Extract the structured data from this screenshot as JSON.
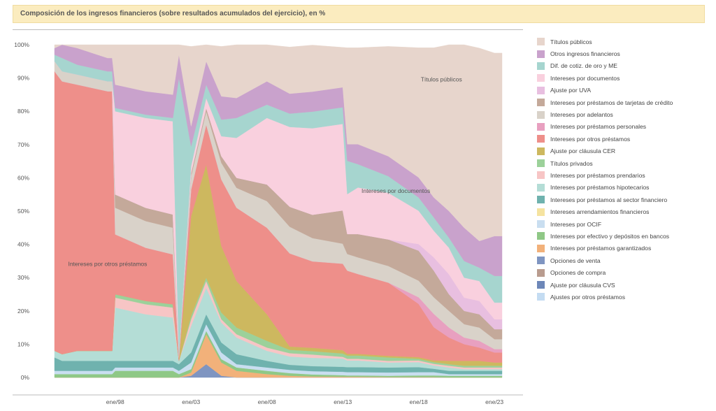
{
  "header": {
    "title": "Composición de los ingresos financieros (sobre resultados acumulados del ejercicio), en %"
  },
  "chart_data": {
    "type": "area",
    "stacked": true,
    "normalized": true,
    "title": "Composición de los ingresos financieros (sobre resultados acumulados del ejercicio), en %",
    "ylim": [
      0,
      100
    ],
    "y_ticks": [
      "0%",
      "10%",
      "20%",
      "30%",
      "40%",
      "50%",
      "60%",
      "70%",
      "80%",
      "90%",
      "100%"
    ],
    "x_range": [
      1994.0,
      2023.5
    ],
    "x_ticks": [
      {
        "label": "ene/98",
        "x": 1998
      },
      {
        "label": "ene/03",
        "x": 2003
      },
      {
        "label": "ene/08",
        "x": 2008
      },
      {
        "label": "ene/13",
        "x": 2013
      },
      {
        "label": "ene/18",
        "x": 2018
      },
      {
        "label": "ene/23",
        "x": 2023
      }
    ],
    "legend_position": "right",
    "grid": false,
    "annotations": [
      {
        "text": "Títulos públicos",
        "x": 2019.5,
        "y": 89
      },
      {
        "text": "Intereses por documentos",
        "x": 2016.5,
        "y": 55.5
      },
      {
        "text": "Intereses por otros préstamos",
        "x": 1997.5,
        "y": 33.5
      }
    ],
    "x": [
      1994.0,
      1994.5,
      1995.5,
      1997.5,
      1997.8,
      1998.0,
      2000.0,
      2001.8,
      2002.2,
      2003.0,
      2004.0,
      2005.0,
      2006.0,
      2008.0,
      2009.5,
      2011.0,
      2013.0,
      2013.3,
      2014.0,
      2016.0,
      2018.0,
      2019.0,
      2020.0,
      2021.0,
      2022.0,
      2023.0,
      2023.5
    ],
    "series": [
      {
        "name": "Opciones de venta",
        "color": "#7f95c1",
        "values": [
          0,
          0,
          0,
          0,
          0,
          0,
          0,
          0,
          0,
          0.5,
          4,
          0.5,
          0,
          0,
          0,
          0,
          0,
          0,
          0,
          0,
          0,
          0,
          0,
          0,
          0,
          0,
          0
        ]
      },
      {
        "name": "Intereses por préstamos garantizados",
        "color": "#f2b17a",
        "values": [
          0,
          0,
          0,
          0,
          0,
          0,
          0,
          0,
          0,
          1,
          9,
          4,
          2,
          1,
          0.5,
          0.3,
          0.2,
          0.2,
          0.2,
          0.1,
          0.1,
          0.1,
          0,
          0,
          0,
          0,
          0
        ]
      },
      {
        "name": "Intereses por efectivo y depósitos en bancos",
        "color": "#8fc886",
        "values": [
          1,
          1,
          1,
          1,
          1,
          2,
          2,
          2,
          1,
          1,
          1,
          1,
          1,
          1,
          0.8,
          0.6,
          0.5,
          0.4,
          0.4,
          0.4,
          0.5,
          0.5,
          0.5,
          0.5,
          0.5,
          0.5,
          0.5
        ]
      },
      {
        "name": "Intereses por OCIF",
        "color": "#c9def0",
        "values": [
          1,
          1,
          1,
          1,
          1,
          1,
          1,
          1,
          1,
          2,
          2,
          2,
          1,
          1,
          1,
          1,
          1,
          1,
          1,
          1,
          1,
          1,
          0.5,
          0.5,
          0.5,
          0.5,
          0.5
        ]
      },
      {
        "name": "Intereses por préstamos al sector financiero",
        "color": "#6fb2ae",
        "values": [
          4,
          3,
          3,
          3,
          3,
          2,
          2,
          2,
          2,
          3,
          3,
          3,
          3,
          2,
          1.5,
          1.5,
          1.5,
          1.5,
          1.5,
          1.5,
          1.5,
          1,
          1,
          1,
          1,
          1,
          1
        ]
      },
      {
        "name": "Intereses por préstamos hipotecarios",
        "color": "#b4ddd6",
        "values": [
          2,
          2,
          3,
          3,
          3,
          16,
          14,
          13,
          1,
          8,
          8,
          6,
          5,
          3,
          2.5,
          2.5,
          2.5,
          2,
          2,
          1.5,
          1.5,
          1,
          1,
          0.5,
          0.5,
          0.5,
          0.5
        ]
      },
      {
        "name": "Intereses por préstamos prendarios",
        "color": "#f7c5c5",
        "values": [
          0,
          0,
          0,
          0,
          0,
          3,
          3,
          3,
          0,
          2,
          2,
          1,
          1,
          1,
          1,
          1,
          0.5,
          0.5,
          0.5,
          0.5,
          0.5,
          0.5,
          0.5,
          0.5,
          0.5,
          0.5,
          0.5
        ]
      },
      {
        "name": "Títulos privados",
        "color": "#9cd19a",
        "values": [
          0,
          0,
          0,
          0,
          0,
          1,
          1,
          1,
          0,
          1,
          1,
          2,
          2,
          2,
          1,
          1,
          1,
          1,
          1,
          1,
          0.5,
          0.5,
          0.5,
          0.5,
          0.5,
          0.5,
          0.5
        ]
      },
      {
        "name": "Ajuste por cláusula CER",
        "color": "#cdb85f",
        "values": [
          0,
          0,
          0,
          0,
          0,
          0,
          0,
          0,
          0,
          30,
          34,
          20,
          14,
          8,
          1,
          1,
          1,
          0.5,
          0.5,
          0.5,
          0.5,
          0.5,
          1,
          1.5,
          1.5,
          1,
          1
        ]
      },
      {
        "name": "Intereses por otros préstamos",
        "color": "#ee8f8a",
        "values": [
          84,
          82,
          80,
          78,
          78,
          18,
          16,
          15,
          1,
          8,
          12,
          20,
          22,
          26,
          28,
          26,
          26,
          25,
          24,
          22,
          16,
          10,
          7,
          5,
          4,
          3,
          3
        ]
      },
      {
        "name": "Intereses por préstamos personales",
        "color": "#e8a0c0",
        "values": [
          0,
          0,
          0,
          0,
          0,
          0,
          0,
          0,
          0,
          0,
          0,
          0,
          0,
          0,
          0,
          0,
          0,
          0,
          0,
          0,
          2,
          4,
          3,
          2,
          2,
          1,
          1
        ]
      },
      {
        "name": "Intereses por adelantos",
        "color": "#d9d2c9",
        "values": [
          3,
          3,
          3,
          3,
          3,
          8,
          8,
          8,
          1,
          4,
          4,
          5,
          6,
          8,
          8,
          7,
          6,
          5,
          5,
          5,
          5,
          5,
          5,
          4,
          4,
          3,
          3
        ]
      },
      {
        "name": "Intereses por préstamos de tarjetas de crédito",
        "color": "#c4a99a",
        "values": [
          0,
          0,
          0,
          0,
          0,
          4,
          4,
          4,
          0,
          1,
          1,
          2,
          3,
          5,
          6,
          7,
          10,
          6,
          7,
          8,
          9,
          8,
          5,
          4,
          4,
          3,
          3
        ]
      },
      {
        "name": "Ajuste por UVA",
        "color": "#e8bfe0",
        "values": [
          0,
          0,
          0,
          0,
          0,
          0,
          0,
          0,
          0,
          0,
          0,
          0,
          0,
          0,
          0,
          0,
          0,
          0,
          0,
          0,
          2,
          4,
          6,
          4,
          4,
          3,
          3
        ]
      },
      {
        "name": "Intereses por documentos",
        "color": "#f9d0de",
        "values": [
          0,
          0,
          0,
          0,
          0,
          25,
          27,
          28,
          0,
          2,
          3,
          6,
          12,
          20,
          24,
          26,
          26,
          12,
          14,
          14,
          10,
          8,
          8,
          6,
          6,
          5,
          5
        ]
      },
      {
        "name": "Dif. de cotiz. de oro y ME",
        "color": "#a6d5cf",
        "values": [
          2,
          4,
          3,
          3,
          3,
          1,
          1,
          1,
          83,
          6,
          4,
          5,
          6,
          4,
          4,
          5,
          5,
          10,
          7,
          5,
          4,
          4,
          3,
          5,
          4,
          8,
          8
        ]
      },
      {
        "name": "Otros ingresos financieros",
        "color": "#c9a2cc",
        "values": [
          2,
          4,
          5,
          4,
          4,
          7,
          7,
          7,
          7,
          6,
          7,
          7,
          6,
          7,
          6,
          6,
          6,
          5,
          6,
          6,
          6,
          6,
          8,
          10,
          8,
          12,
          12
        ]
      },
      {
        "name": "Títulos públicos",
        "color": "#e7d5cc",
        "values": [
          1,
          0,
          1,
          4,
          4,
          12,
          14,
          15,
          3,
          24,
          5,
          15,
          16,
          11,
          14,
          14,
          12,
          29,
          29,
          33,
          39,
          45,
          50,
          55,
          58,
          55,
          55
        ]
      }
    ],
    "legend": [
      {
        "label": "Títulos públicos",
        "color": "#e7d5cc"
      },
      {
        "label": "Otros ingresos financieros",
        "color": "#c9a2cc"
      },
      {
        "label": "Dif. de cotiz. de oro y ME",
        "color": "#a6d5cf"
      },
      {
        "label": "Intereses por documentos",
        "color": "#f9d0de"
      },
      {
        "label": "Ajuste por UVA",
        "color": "#e8bfe0"
      },
      {
        "label": "Intereses por préstamos de tarjetas de crédito",
        "color": "#c4a99a"
      },
      {
        "label": "Intereses por adelantos",
        "color": "#d9d2c9"
      },
      {
        "label": "Intereses por préstamos personales",
        "color": "#e8a0c0"
      },
      {
        "label": "Intereses por otros préstamos",
        "color": "#ee8f8a"
      },
      {
        "label": "Ajuste por cláusula CER",
        "color": "#cdb85f"
      },
      {
        "label": "Títulos privados",
        "color": "#9cd19a"
      },
      {
        "label": "Intereses por préstamos prendarios",
        "color": "#f7c5c5"
      },
      {
        "label": "Intereses por préstamos hipotecarios",
        "color": "#b4ddd6"
      },
      {
        "label": "Intereses por préstamos al sector financiero",
        "color": "#6fb2ae"
      },
      {
        "label": "Intereses arrendamientos financieros",
        "color": "#f5e3a0"
      },
      {
        "label": "Intereses por OCIF",
        "color": "#c9def0"
      },
      {
        "label": "Intereses por efectivo y depósitos en bancos",
        "color": "#8fc886"
      },
      {
        "label": "Intereses por préstamos garantizados",
        "color": "#f2b17a"
      },
      {
        "label": "Opciones de venta",
        "color": "#7f95c1"
      },
      {
        "label": "Opciones de compra",
        "color": "#b99c8f"
      },
      {
        "label": "Ajuste por cláusula CVS",
        "color": "#6d87b8"
      },
      {
        "label": "Ajustes por otros préstamos",
        "color": "#c4dcf2"
      }
    ]
  }
}
